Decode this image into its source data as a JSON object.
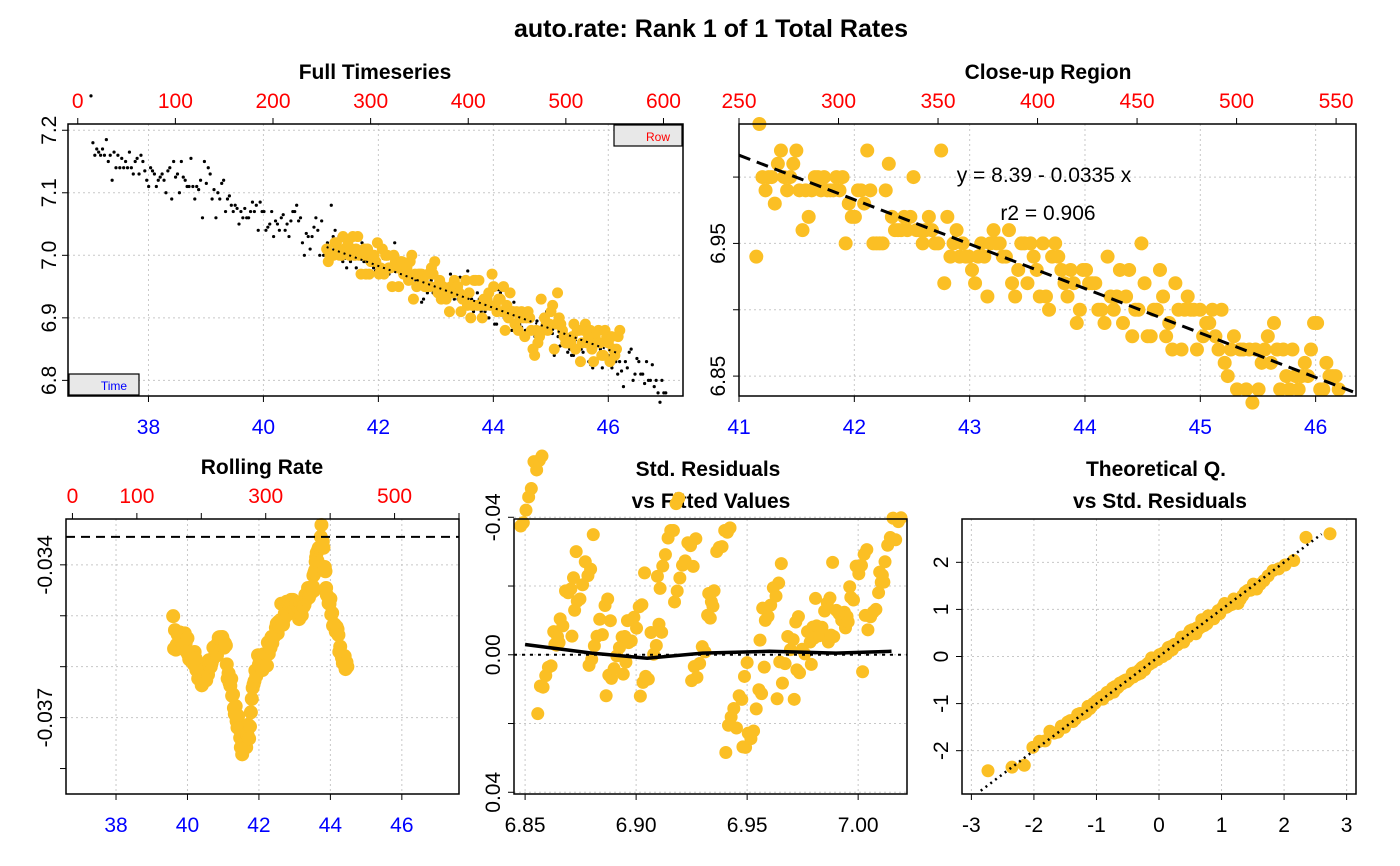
{
  "page_title": "auto.rate: Rank 1 of 1 Total Rates",
  "colors": {
    "points": "#FBBF24",
    "raw": "#000000",
    "top_axis": "#FF0000",
    "bottom_axis": "#0000FF",
    "grid": "#C8C8C8"
  },
  "chart_data": [
    {
      "id": "full",
      "type": "scatter",
      "title": "Full Timeseries",
      "x_top_ticks": [
        "0",
        "100",
        "200",
        "300",
        "400",
        "500",
        "600"
      ],
      "x_bottom_ticks": [
        "38",
        "40",
        "42",
        "44",
        "46"
      ],
      "y_ticks": [
        "6.8",
        "6.9",
        "7.0",
        "7.1",
        "7.2"
      ],
      "xlim": [
        36.6,
        47.3
      ],
      "ylim": [
        6.775,
        7.21
      ],
      "top_xlim": [
        -10,
        620
      ],
      "legend_row": "Row",
      "legend_time": "Time",
      "raw_series": {
        "name": "timeseries",
        "x_range": [
          37.0,
          47.0
        ],
        "y_start": 7.175,
        "y_end": 6.795,
        "n": 300
      },
      "selected_series": {
        "x_range": [
          41.1,
          46.2
        ],
        "y_start": 7.02,
        "y_end": 6.85,
        "n": 180
      },
      "fit_line": {
        "intercept": 8.39,
        "slope": -0.0335,
        "x_range": [
          41.1,
          46.2
        ]
      }
    },
    {
      "id": "closeup",
      "type": "scatter",
      "title": "Close-up Region",
      "x_top_ticks": [
        "250",
        "300",
        "350",
        "400",
        "450",
        "500",
        "550"
      ],
      "x_bottom_ticks": [
        "41",
        "42",
        "43",
        "44",
        "45",
        "46"
      ],
      "y_ticks": [
        "6.85",
        "6.95"
      ],
      "xlim": [
        41.0,
        46.35
      ],
      "ylim": [
        6.835,
        7.04
      ],
      "top_xlim": [
        250,
        560
      ],
      "annotation_eq": "y = 8.39 - 0.0335 x",
      "annotation_r2": "r2 = 0.906",
      "fit_line": {
        "intercept": 8.39,
        "slope": -0.0335
      }
    },
    {
      "id": "rolling",
      "type": "line",
      "title": "Rolling Rate",
      "x_top_ticks": [
        "0",
        "100",
        "300",
        "500"
      ],
      "x_bottom_ticks": [
        "38",
        "40",
        "42",
        "44",
        "46"
      ],
      "y_ticks": [
        "-0.037",
        "-0.034"
      ],
      "xlim": [
        36.6,
        47.6
      ],
      "ylim": [
        -0.0385,
        -0.0331
      ],
      "top_xlim": [
        -10,
        600
      ],
      "reference_line": -0.03345,
      "points": [
        [
          39.6,
          -0.0355
        ],
        [
          39.8,
          -0.0354
        ],
        [
          40.0,
          -0.0357
        ],
        [
          40.2,
          -0.0359
        ],
        [
          40.4,
          -0.0363
        ],
        [
          40.6,
          -0.0361
        ],
        [
          40.8,
          -0.0356
        ],
        [
          41.0,
          -0.0354
        ],
        [
          41.2,
          -0.0363
        ],
        [
          41.4,
          -0.0371
        ],
        [
          41.55,
          -0.0376
        ],
        [
          41.7,
          -0.0372
        ],
        [
          41.9,
          -0.0361
        ],
        [
          42.1,
          -0.0359
        ],
        [
          42.3,
          -0.0356
        ],
        [
          42.5,
          -0.0353
        ],
        [
          42.7,
          -0.035
        ],
        [
          42.9,
          -0.0347
        ],
        [
          43.1,
          -0.0349
        ],
        [
          43.3,
          -0.0346
        ],
        [
          43.5,
          -0.0345
        ],
        [
          43.6,
          -0.0339
        ],
        [
          43.75,
          -0.0334
        ],
        [
          43.9,
          -0.0345
        ],
        [
          44.1,
          -0.0352
        ],
        [
          44.3,
          -0.0357
        ],
        [
          44.5,
          -0.036
        ]
      ]
    },
    {
      "id": "residuals",
      "type": "scatter",
      "title": "Std. Residuals",
      "subtitle": "vs Fitted Values",
      "x_bottom_ticks": [
        "6.85",
        "6.90",
        "6.95",
        "7.00"
      ],
      "y_ticks": [
        "-0.04",
        "0.00",
        "0.04"
      ],
      "xlim": [
        6.845,
        7.022
      ],
      "ylim": [
        0.0405,
        -0.0395
      ],
      "loess": [
        [
          6.85,
          -0.003
        ],
        [
          6.88,
          -0.0005
        ],
        [
          6.905,
          0.001
        ],
        [
          6.93,
          -0.0005
        ],
        [
          6.96,
          -0.001
        ],
        [
          6.99,
          -0.0005
        ],
        [
          7.015,
          -0.001
        ]
      ]
    },
    {
      "id": "qq",
      "type": "scatter",
      "title": "Theoretical Q.",
      "subtitle": "vs Std. Residuals",
      "x_bottom_ticks": [
        "-3",
        "-2",
        "-1",
        "0",
        "1",
        "2",
        "3"
      ],
      "y_ticks": [
        "-2",
        "-1",
        "0",
        "1",
        "2"
      ],
      "xlim": [
        -3.15,
        3.15
      ],
      "ylim": [
        -2.92,
        2.92
      ],
      "ref_line": {
        "intercept": 0.0,
        "slope": 1.0
      }
    }
  ]
}
